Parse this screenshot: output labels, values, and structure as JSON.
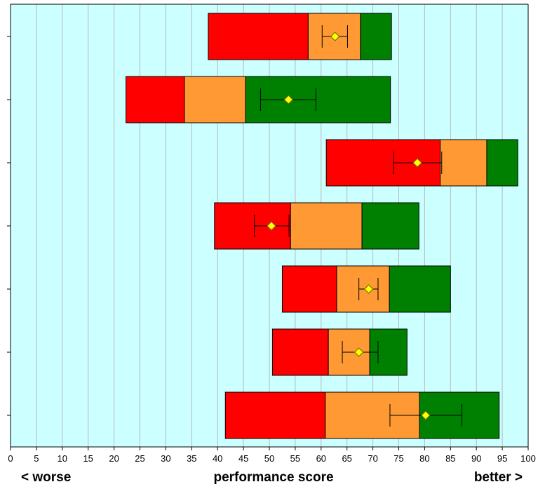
{
  "chart_data": {
    "type": "bar",
    "orientation": "horizontal-stacked-range",
    "xlim": [
      0,
      100
    ],
    "x_ticks": [
      0,
      5,
      10,
      15,
      20,
      25,
      30,
      35,
      40,
      45,
      50,
      55,
      60,
      65,
      70,
      75,
      80,
      85,
      90,
      95,
      100
    ],
    "grid": true,
    "background_color": "#ccffff",
    "segment_colors": {
      "low": "#ff0000",
      "mid": "#ff9933",
      "high": "#008000"
    },
    "marker_color": "#ffff00",
    "rows": [
      {
        "boundaries": [
          38.2,
          57.5,
          67.6,
          73.6
        ],
        "score": 62.7,
        "ci": [
          60.2,
          65.1
        ]
      },
      {
        "boundaries": [
          22.3,
          33.6,
          45.4,
          73.4
        ],
        "score": 53.7,
        "ci": [
          48.3,
          59.0
        ]
      },
      {
        "boundaries": [
          61.0,
          83.0,
          92.0,
          98.0
        ],
        "score": 78.6,
        "ci": [
          74.0,
          83.3
        ]
      },
      {
        "boundaries": [
          39.4,
          54.1,
          67.9,
          78.9
        ],
        "score": 50.4,
        "ci": [
          47.1,
          53.8
        ]
      },
      {
        "boundaries": [
          52.5,
          63.0,
          73.2,
          85.0
        ],
        "score": 69.2,
        "ci": [
          67.3,
          71.0
        ]
      },
      {
        "boundaries": [
          50.6,
          61.4,
          69.4,
          76.6
        ],
        "score": 67.3,
        "ci": [
          64.1,
          71.0
        ]
      },
      {
        "boundaries": [
          41.5,
          60.8,
          79.0,
          94.4
        ],
        "score": 80.2,
        "ci": [
          73.3,
          87.2
        ]
      }
    ]
  },
  "labels": {
    "left": "< worse",
    "center": "performance score",
    "right": "better >"
  }
}
